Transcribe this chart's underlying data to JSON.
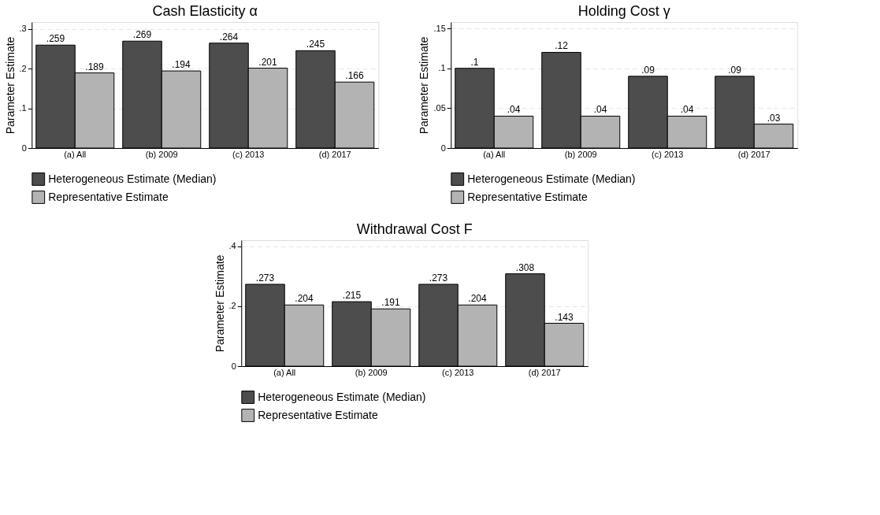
{
  "chart_data": [
    {
      "type": "bar",
      "title": "Cash Elasticity α",
      "ylabel": "Parameter Estimate",
      "categories": [
        "(a) All",
        "(b) 2009",
        "(c) 2013",
        "(d) 2017"
      ],
      "series": [
        {
          "name": "Heterogeneous Estimate (Median)",
          "color": "#4d4d4d",
          "values": [
            0.259,
            0.269,
            0.264,
            0.245
          ],
          "value_labels": [
            ".259",
            ".269",
            ".264",
            ".245"
          ]
        },
        {
          "name": "Representative Estimate",
          "color": "#b3b3b3",
          "values": [
            0.189,
            0.194,
            0.201,
            0.166
          ],
          "value_labels": [
            ".189",
            ".194",
            ".201",
            ".166"
          ]
        }
      ],
      "ylim": [
        0,
        0.317
      ],
      "yticks": [
        0,
        {
          "value": 0.1,
          "label": ".1"
        },
        {
          "value": 0.2,
          "label": ".2"
        },
        {
          "value": 0.3,
          "label": ".3"
        }
      ],
      "grid": "y",
      "legend": "bottom"
    },
    {
      "type": "bar",
      "title": "Holding Cost γ",
      "ylabel": "Parameter Estimate",
      "categories": [
        "(a) All",
        "(b) 2009",
        "(c) 2013",
        "(d) 2017"
      ],
      "series": [
        {
          "name": "Heterogeneous Estimate (Median)",
          "color": "#4d4d4d",
          "values": [
            0.1,
            0.12,
            0.09,
            0.09
          ],
          "value_labels": [
            ".1",
            ".12",
            ".09",
            ".09"
          ]
        },
        {
          "name": "Representative Estimate",
          "color": "#b3b3b3",
          "values": [
            0.04,
            0.04,
            0.04,
            0.03
          ],
          "value_labels": [
            ".04",
            ".04",
            ".04",
            ".03"
          ]
        }
      ],
      "ylim": [
        0,
        0.158
      ],
      "yticks": [
        0,
        {
          "value": 0.05,
          "label": ".05"
        },
        {
          "value": 0.1,
          "label": ".1"
        },
        {
          "value": 0.15,
          "label": ".15"
        }
      ],
      "grid": "y",
      "legend": "bottom"
    },
    {
      "type": "bar",
      "title": "Withdrawal Cost F",
      "ylabel": "Parameter Estimate",
      "categories": [
        "(a) All",
        "(b) 2009",
        "(c) 2013",
        "(d) 2017"
      ],
      "series": [
        {
          "name": "Heterogeneous Estimate (Median)",
          "color": "#4d4d4d",
          "values": [
            0.273,
            0.215,
            0.273,
            0.308
          ],
          "value_labels": [
            ".273",
            ".215",
            ".273",
            ".308"
          ]
        },
        {
          "name": "Representative Estimate",
          "color": "#b3b3b3",
          "values": [
            0.204,
            0.191,
            0.204,
            0.143
          ],
          "value_labels": [
            ".204",
            ".191",
            ".204",
            ".143"
          ]
        }
      ],
      "ylim": [
        0,
        0.42
      ],
      "yticks": [
        0,
        {
          "value": 0.2,
          "label": ".2"
        },
        {
          "value": 0.4,
          "label": ".4"
        }
      ],
      "grid": "y",
      "legend": "bottom"
    }
  ]
}
